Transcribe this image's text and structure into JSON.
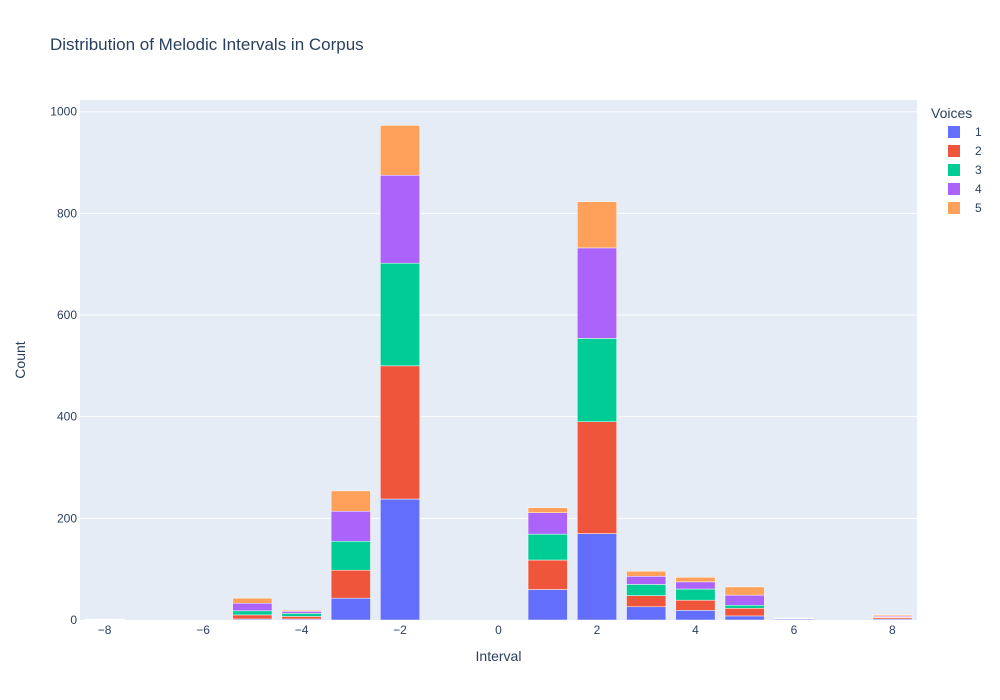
{
  "chart_data": {
    "type": "bar",
    "barmode": "stack",
    "title": "Distribution of Melodic Intervals in Corpus",
    "xlabel": "Interval",
    "ylabel": "Count",
    "legend_title": "Voices",
    "legend_placement": "right",
    "xlim": [
      -8.5,
      8.5
    ],
    "ylim": [
      0,
      1023
    ],
    "x_ticks": [
      -8,
      -6,
      -4,
      -2,
      0,
      2,
      4,
      6,
      8
    ],
    "x_tick_labels": [
      "−8",
      "−6",
      "−4",
      "−2",
      "0",
      "2",
      "4",
      "6",
      "8"
    ],
    "y_ticks": [
      0,
      200,
      400,
      600,
      800,
      1000
    ],
    "y_tick_labels": [
      "0",
      "200",
      "400",
      "600",
      "800",
      "1000"
    ],
    "grid": true,
    "background": "#E5ECF6",
    "x": [
      -8,
      -5,
      -4,
      -3,
      -2,
      1,
      2,
      3,
      4,
      5,
      6,
      8
    ],
    "series": [
      {
        "name": "1",
        "color": "#636EFA",
        "values": [
          1,
          2,
          2,
          43,
          238,
          60,
          170,
          26,
          19,
          8,
          2,
          2
        ]
      },
      {
        "name": "2",
        "color": "#EF553B",
        "values": [
          1,
          8,
          5,
          55,
          262,
          58,
          220,
          22,
          20,
          15,
          1,
          3
        ]
      },
      {
        "name": "3",
        "color": "#00CC96",
        "values": [
          0,
          8,
          6,
          57,
          202,
          51,
          164,
          22,
          22,
          6,
          0,
          1
        ]
      },
      {
        "name": "4",
        "color": "#AB63FA",
        "values": [
          0,
          15,
          4,
          59,
          173,
          42,
          178,
          16,
          14,
          20,
          1,
          2
        ]
      },
      {
        "name": "5",
        "color": "#FFA15A",
        "values": [
          0,
          10,
          2,
          40,
          98,
          10,
          91,
          10,
          9,
          16,
          0,
          2
        ]
      }
    ]
  }
}
